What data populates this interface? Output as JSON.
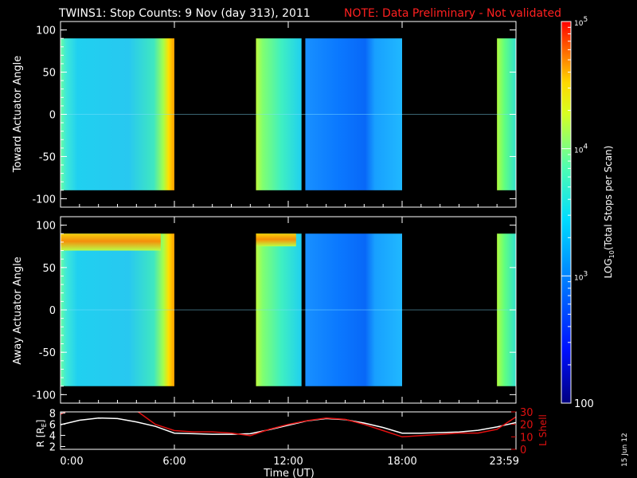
{
  "header": {
    "title": "TWINS1: Stop Counts:  9 Nov (day 313), 2011",
    "note": "NOTE: Data Preliminary - Not validated"
  },
  "colors": {
    "note": "#ff2020",
    "lshell": "#e01010",
    "radius": "#ffffff",
    "frame": "#ffffff",
    "background": "#000000"
  },
  "side_date": "15 Jun 12",
  "chart_data": [
    {
      "type": "heatmap",
      "panel": "toward",
      "ylabel": "Toward Actuator Angle",
      "ylim": [
        -110,
        110
      ],
      "yticks": [
        "100",
        "50",
        "0",
        "-50",
        "-100"
      ],
      "ytick_values": [
        100,
        50,
        0,
        -50,
        -100
      ],
      "data_angle_range": [
        -90,
        90
      ],
      "x_range_hours": [
        0,
        24
      ],
      "data_blocks_hours": [
        {
          "start": 0.0,
          "end": 6.0,
          "level": "cyan"
        },
        {
          "start": 10.3,
          "end": 12.7,
          "level": "cyan-green"
        },
        {
          "start": 12.9,
          "end": 18.0,
          "level": "blue"
        },
        {
          "start": 23.0,
          "end": 24.0,
          "level": "cyan-green"
        }
      ]
    },
    {
      "type": "heatmap",
      "panel": "away",
      "ylabel": "Away Actuator Angle",
      "ylim": [
        -110,
        110
      ],
      "yticks": [
        "100",
        "50",
        "0",
        "-50",
        "-100"
      ],
      "ytick_values": [
        100,
        50,
        0,
        -50,
        -100
      ],
      "data_angle_range": [
        -90,
        90
      ],
      "x_range_hours": [
        0,
        24
      ],
      "data_blocks_hours": [
        {
          "start": 0.0,
          "end": 6.0,
          "level": "cyan",
          "high_band_angle": [
            70,
            90
          ]
        },
        {
          "start": 10.3,
          "end": 12.7,
          "level": "cyan-green",
          "high_band_angle": [
            75,
            90
          ]
        },
        {
          "start": 12.9,
          "end": 18.0,
          "level": "blue"
        },
        {
          "start": 23.0,
          "end": 24.0,
          "level": "cyan-green"
        }
      ]
    },
    {
      "type": "line",
      "panel": "ephemeris",
      "xlabel": "Time (UT)",
      "xticks": [
        "0:00",
        "6:00",
        "12:00",
        "18:00",
        "23:59"
      ],
      "xtick_hours": [
        0,
        6,
        12,
        18,
        24
      ],
      "left_axis": {
        "label": "R [R",
        "label_sub": "E",
        "label_end": "]",
        "ylim": [
          1.5,
          8.2
        ],
        "ticks": [
          "8",
          "6",
          "4",
          "2"
        ],
        "tick_values": [
          8,
          6,
          4,
          2
        ]
      },
      "right_axis": {
        "label": "L Shell",
        "ylim": [
          0,
          30
        ],
        "ticks": [
          "30",
          "20",
          "10",
          "0"
        ],
        "tick_values": [
          30,
          20,
          10,
          0
        ]
      },
      "series": [
        {
          "axis": "left",
          "color": "#ffffff",
          "x": [
            0,
            1,
            2,
            3,
            4,
            5,
            6,
            7,
            8,
            9,
            10,
            11,
            12,
            13,
            14,
            15,
            16,
            17,
            18,
            19,
            20,
            21,
            22,
            23,
            24
          ],
          "y": [
            5.9,
            6.7,
            7.1,
            7.0,
            6.4,
            5.6,
            4.4,
            4.3,
            4.2,
            4.2,
            4.3,
            5.0,
            5.8,
            6.6,
            7.0,
            6.8,
            6.2,
            5.4,
            4.4,
            4.4,
            4.5,
            4.6,
            4.9,
            5.5,
            6.3
          ]
        },
        {
          "axis": "right",
          "color": "#e01010",
          "x": [
            0,
            0.4,
            4.0,
            5.0,
            6.0,
            7.0,
            8.0,
            9.0,
            10.0,
            11.0,
            12.0,
            13.0,
            14.0,
            15.0,
            16.0,
            17.0,
            18.0,
            19.0,
            20.0,
            21.0,
            22.0,
            23.0,
            24.0
          ],
          "y": [
            28,
            31,
            31,
            20,
            15,
            14,
            14,
            13,
            11,
            16,
            20,
            23,
            25,
            24,
            20,
            15,
            10,
            11,
            12,
            13,
            13,
            16,
            26
          ]
        }
      ]
    },
    {
      "type": "colorbar",
      "label_prefix": "LOG",
      "label_sub": "10",
      "label_rest": "(Total Stops per Scan)",
      "scale": "log",
      "range": [
        100,
        100000
      ],
      "ticks": [
        {
          "value": 100000,
          "base": "10",
          "exp": "5"
        },
        {
          "value": 10000,
          "base": "10",
          "exp": "4"
        },
        {
          "value": 1000,
          "base": "10",
          "exp": "3"
        },
        {
          "value": 100,
          "text": "100"
        }
      ]
    }
  ]
}
